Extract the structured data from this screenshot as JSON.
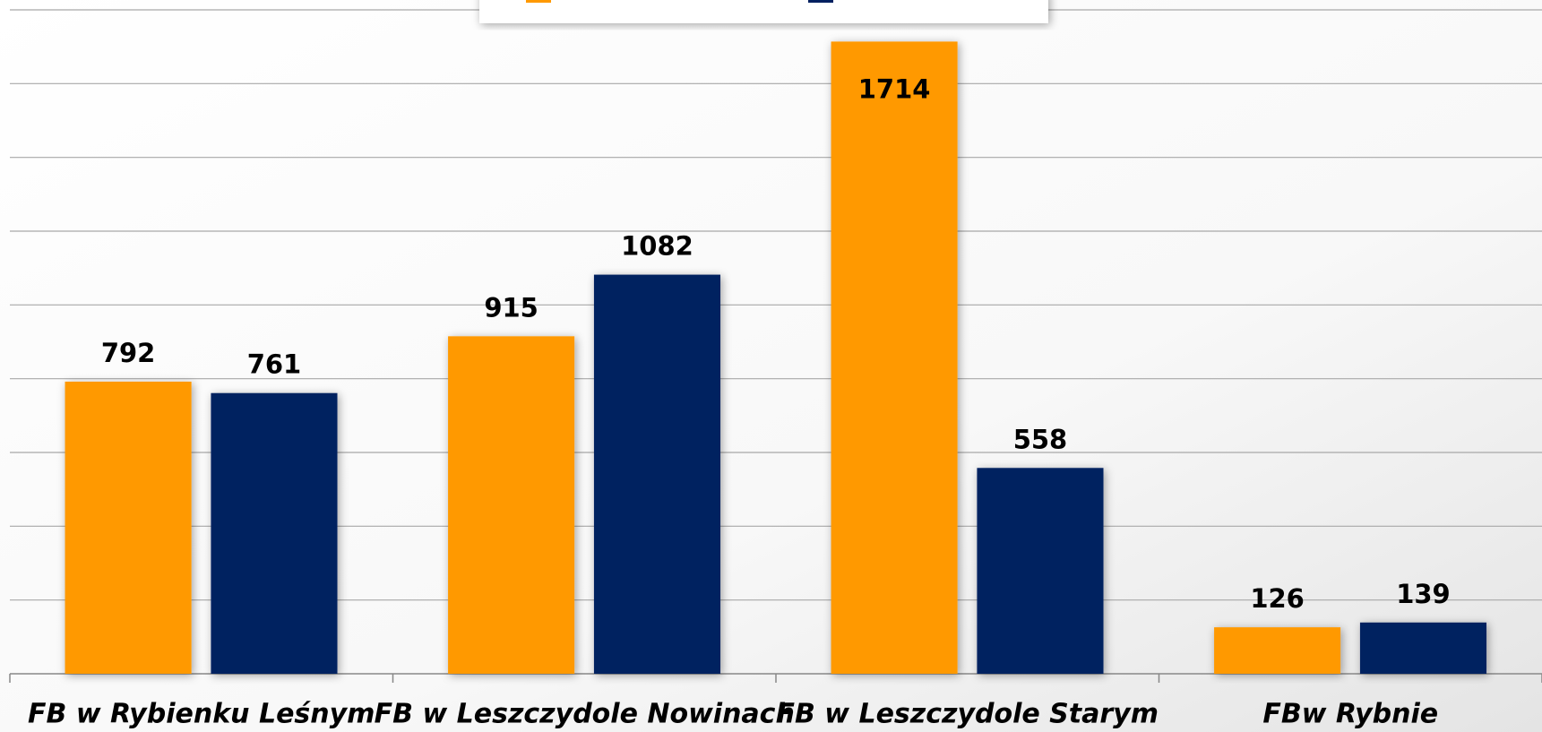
{
  "chart_data": {
    "type": "bar",
    "categories": [
      "FB w Rybienku Leśnym",
      "FB w Leszczydole Nowinach",
      "FB w Leszczydole Starym",
      "FBw Rybnie"
    ],
    "series": [
      {
        "color": "#ff9900",
        "values": [
          792,
          915,
          1714,
          126
        ]
      },
      {
        "color": "#002060",
        "values": [
          761,
          1082,
          558,
          139
        ]
      }
    ],
    "ylim": [
      0,
      1800
    ],
    "yticks": [
      0,
      200,
      400,
      600,
      800,
      1000,
      1200,
      1400,
      1600,
      1800
    ],
    "grid": true
  }
}
